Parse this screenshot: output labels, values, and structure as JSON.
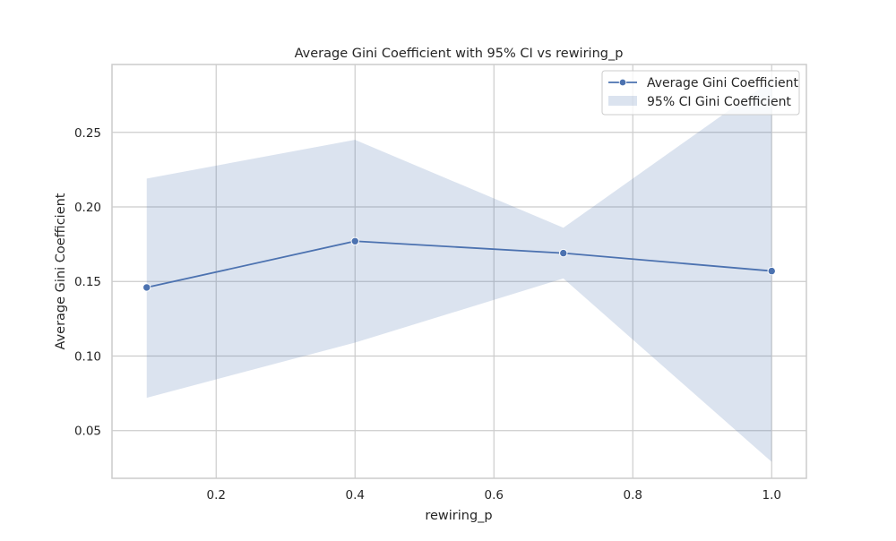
{
  "chart_data": {
    "type": "line",
    "title": "Average Gini Coefficient with 95% CI vs rewiring_p",
    "xlabel": "rewiring_p",
    "ylabel": "Average Gini Coefficient",
    "xlim": [
      0.05,
      1.05
    ],
    "ylim": [
      0.018,
      0.2955
    ],
    "x_ticks": [
      0.2,
      0.4,
      0.6,
      0.8,
      1.0
    ],
    "x_tick_labels": [
      "0.2",
      "0.4",
      "0.6",
      "0.8",
      "1.0"
    ],
    "y_ticks": [
      0.05,
      0.1,
      0.15,
      0.2,
      0.25
    ],
    "y_tick_labels": [
      "0.05",
      "0.10",
      "0.15",
      "0.20",
      "0.25"
    ],
    "grid": true,
    "legend_position": "top-right",
    "x": [
      0.1,
      0.4,
      0.7,
      1.0
    ],
    "series": [
      {
        "name": "Average Gini Coefficient",
        "values": [
          0.146,
          0.177,
          0.169,
          0.157
        ],
        "color": "#4c72b0"
      }
    ],
    "ci_band": {
      "name": "95% CI Gini Coefficient",
      "lower": [
        0.072,
        0.109,
        0.152,
        0.029
      ],
      "upper": [
        0.219,
        0.245,
        0.186,
        0.285
      ],
      "color": "#4c72b0",
      "opacity": 0.2
    }
  }
}
